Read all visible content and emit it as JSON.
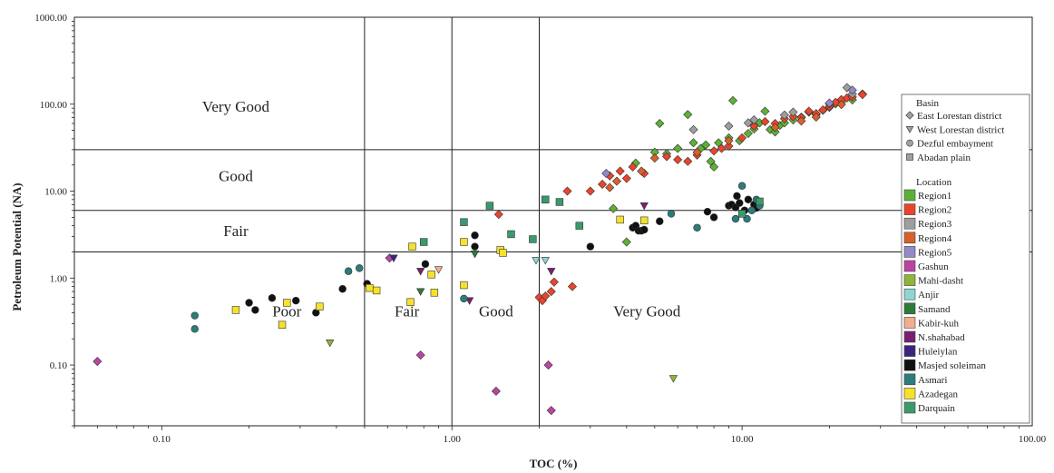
{
  "chart_data": {
    "type": "scatter",
    "xlabel": "TOC (%)",
    "ylabel": "Petroleum Potential (NA)",
    "xscale": "log",
    "yscale": "log",
    "xlim": [
      0.05,
      100
    ],
    "ylim": [
      0.02,
      1000
    ],
    "x_ticks": [
      {
        "value": 0.1,
        "label": "0.10"
      },
      {
        "value": 1,
        "label": "1.00"
      },
      {
        "value": 10,
        "label": "10.00"
      },
      {
        "value": 100,
        "label": "100.00"
      }
    ],
    "y_ticks": [
      {
        "value": 0.1,
        "label": "0.10"
      },
      {
        "value": 1,
        "label": "1.00"
      },
      {
        "value": 10,
        "label": "10.00"
      },
      {
        "value": 100,
        "label": "100.00"
      },
      {
        "value": 1000,
        "label": "1000.00"
      }
    ],
    "x_boundaries": [
      0.5,
      1,
      2
    ],
    "y_boundaries": [
      2,
      6,
      30
    ],
    "y_zone_labels": [
      {
        "text": "Very Good",
        "y": 95
      },
      {
        "text": "Good",
        "y": 15
      },
      {
        "text": "Fair",
        "y": 3.5
      }
    ],
    "x_zone_labels": [
      {
        "text": "Poor",
        "x": 0.27
      },
      {
        "text": "Fair",
        "x": 0.7
      },
      {
        "text": "Good",
        "x": 1.42
      },
      {
        "text": "Very Good",
        "x": 4.7
      }
    ],
    "x_zone_label_y": 0.42,
    "legend": {
      "position": "right",
      "basin_title": "Basin",
      "basin_items": [
        {
          "label": "East Lorestan district",
          "shape": "diamond"
        },
        {
          "label": "West Lorestan district",
          "shape": "triangle-down"
        },
        {
          "label": "Dezful embayment",
          "shape": "circle"
        },
        {
          "label": "Abadan plain",
          "shape": "square"
        }
      ],
      "location_title": "Location"
    },
    "series": [
      {
        "name": "Region1",
        "color": "#5cb136",
        "shape": "diamond",
        "points": [
          [
            3.6,
            6.3
          ],
          [
            4,
            2.6
          ],
          [
            4.3,
            21
          ],
          [
            5,
            28
          ],
          [
            5.2,
            60
          ],
          [
            5.5,
            27
          ],
          [
            6,
            31
          ],
          [
            6.5,
            76
          ],
          [
            6.8,
            36
          ],
          [
            7.2,
            31
          ],
          [
            7.5,
            34
          ],
          [
            7.8,
            22
          ],
          [
            8,
            19
          ],
          [
            8.3,
            36
          ],
          [
            9,
            41
          ],
          [
            9.3,
            110
          ],
          [
            9.8,
            38
          ],
          [
            10.5,
            46
          ],
          [
            11,
            52
          ],
          [
            11.5,
            61
          ],
          [
            12,
            83
          ],
          [
            12.5,
            51
          ],
          [
            13,
            48
          ],
          [
            13.5,
            57
          ],
          [
            14,
            61
          ],
          [
            15,
            66
          ],
          [
            16,
            71
          ],
          [
            17,
            81
          ],
          [
            18,
            76
          ],
          [
            19,
            85
          ],
          [
            20,
            92
          ],
          [
            21,
            101
          ],
          [
            22,
            106
          ],
          [
            24,
            112
          ],
          [
            26,
            131
          ]
        ]
      },
      {
        "name": "Region2",
        "color": "#e8452c",
        "shape": "diamond",
        "points": [
          [
            1.45,
            5.4
          ],
          [
            2,
            0.6
          ],
          [
            2.05,
            0.55
          ],
          [
            2.1,
            0.62
          ],
          [
            2.2,
            0.7
          ],
          [
            2.25,
            0.9
          ],
          [
            2.5,
            10
          ],
          [
            2.6,
            0.8
          ],
          [
            3,
            10
          ],
          [
            3.3,
            12
          ],
          [
            3.5,
            15
          ],
          [
            3.8,
            17
          ],
          [
            4,
            14
          ],
          [
            4.2,
            19
          ],
          [
            4.6,
            16
          ],
          [
            5.5,
            25
          ],
          [
            6,
            23
          ],
          [
            6.5,
            22
          ],
          [
            7,
            26
          ],
          [
            8,
            29
          ],
          [
            8.5,
            31
          ],
          [
            9,
            33
          ],
          [
            10,
            41
          ],
          [
            11,
            56
          ],
          [
            12,
            63
          ],
          [
            13,
            60
          ],
          [
            14,
            68
          ],
          [
            15,
            72
          ],
          [
            16,
            70
          ],
          [
            17,
            83
          ],
          [
            18,
            78
          ],
          [
            19,
            86
          ],
          [
            20,
            94
          ],
          [
            21,
            105
          ],
          [
            22,
            113
          ],
          [
            23,
            118
          ],
          [
            24,
            121
          ],
          [
            26,
            129
          ]
        ]
      },
      {
        "name": "Region3",
        "color": "#9e9e9e",
        "shape": "diamond",
        "points": [
          [
            6.8,
            51
          ],
          [
            9,
            56
          ],
          [
            10.5,
            61
          ],
          [
            11,
            66
          ],
          [
            14,
            75
          ],
          [
            15,
            81
          ],
          [
            20,
            101
          ],
          [
            23,
            155
          ],
          [
            24,
            131
          ]
        ]
      },
      {
        "name": "Region4",
        "color": "#d9602b",
        "shape": "diamond",
        "points": [
          [
            3.5,
            11
          ],
          [
            3.7,
            13
          ],
          [
            4.5,
            17
          ],
          [
            5,
            24
          ],
          [
            7,
            28
          ],
          [
            9,
            38
          ],
          [
            13,
            54
          ],
          [
            16,
            64
          ],
          [
            18,
            71
          ],
          [
            22,
            99
          ]
        ]
      },
      {
        "name": "Region5",
        "color": "#9488c9",
        "shape": "diamond",
        "points": [
          [
            3.4,
            16
          ],
          [
            20,
            103
          ],
          [
            24,
            145
          ]
        ]
      },
      {
        "name": "Gashun",
        "color": "#bb44a3",
        "shape": "diamond",
        "points": [
          [
            0.06,
            0.11
          ],
          [
            0.61,
            1.7
          ],
          [
            0.78,
            0.13
          ],
          [
            1.42,
            0.05
          ],
          [
            2.15,
            0.1
          ],
          [
            2.2,
            0.03
          ]
        ]
      },
      {
        "name": "Mahi-dasht",
        "color": "#8db53a",
        "shape": "triangle-down",
        "points": [
          [
            0.38,
            0.18
          ],
          [
            5.8,
            0.07
          ]
        ]
      },
      {
        "name": "Anjir",
        "color": "#8fd5d1",
        "shape": "triangle-down",
        "points": [
          [
            1.95,
            1.6
          ],
          [
            2.1,
            1.6
          ]
        ]
      },
      {
        "name": "Samand",
        "color": "#2f7a3a",
        "shape": "triangle-down",
        "points": [
          [
            0.78,
            0.7
          ],
          [
            1.2,
            1.9
          ]
        ]
      },
      {
        "name": "Kabir-kuh",
        "color": "#f3ad8c",
        "shape": "triangle-down",
        "points": [
          [
            0.9,
            1.25
          ]
        ]
      },
      {
        "name": "N.shahabad",
        "color": "#7b1e72",
        "shape": "triangle-down",
        "points": [
          [
            0.78,
            1.2
          ],
          [
            1.15,
            0.55
          ],
          [
            2.2,
            1.2
          ],
          [
            4.6,
            6.8
          ]
        ]
      },
      {
        "name": "Huleiylan",
        "color": "#3b2380",
        "shape": "triangle-down",
        "points": [
          [
            0.63,
            1.7
          ]
        ]
      },
      {
        "name": "Masjed soleiman",
        "color": "#111111",
        "shape": "circle",
        "points": [
          [
            0.2,
            0.52
          ],
          [
            0.21,
            0.43
          ],
          [
            0.24,
            0.59
          ],
          [
            0.29,
            0.55
          ],
          [
            0.34,
            0.4
          ],
          [
            0.42,
            0.75
          ],
          [
            0.51,
            0.86
          ],
          [
            0.81,
            1.45
          ],
          [
            1.2,
            3.1
          ],
          [
            1.2,
            2.3
          ],
          [
            3,
            2.3
          ],
          [
            4.2,
            3.8
          ],
          [
            4.3,
            4
          ],
          [
            4.4,
            3.5
          ],
          [
            4.5,
            3.5
          ],
          [
            4.6,
            3.6
          ],
          [
            5.2,
            4.5
          ],
          [
            7.6,
            5.8
          ],
          [
            8,
            5
          ],
          [
            9,
            6.8
          ],
          [
            9.2,
            7
          ],
          [
            9.5,
            6.5
          ],
          [
            9.6,
            8.8
          ],
          [
            9.8,
            7.3
          ],
          [
            10.2,
            6
          ],
          [
            10.5,
            8
          ],
          [
            11,
            7
          ],
          [
            11.2,
            6.4
          ]
        ]
      },
      {
        "name": "Asmari",
        "color": "#2b7c7a",
        "shape": "circle",
        "points": [
          [
            0.13,
            0.37
          ],
          [
            0.13,
            0.26
          ],
          [
            0.44,
            1.2
          ],
          [
            0.48,
            1.3
          ],
          [
            1.1,
            0.58
          ],
          [
            5.7,
            5.5
          ],
          [
            7,
            3.8
          ],
          [
            9.5,
            4.8
          ],
          [
            10,
            11.5
          ],
          [
            10.4,
            4.8
          ],
          [
            10.8,
            6
          ],
          [
            11.2,
            8
          ],
          [
            11.5,
            6.8
          ]
        ]
      },
      {
        "name": "Azadegan",
        "color": "#f6e12b",
        "shape": "square",
        "points": [
          [
            0.18,
            0.43
          ],
          [
            0.26,
            0.29
          ],
          [
            0.27,
            0.52
          ],
          [
            0.35,
            0.47
          ],
          [
            0.52,
            0.77
          ],
          [
            0.55,
            0.72
          ],
          [
            0.72,
            0.53
          ],
          [
            0.73,
            2.3
          ],
          [
            0.85,
            1.1
          ],
          [
            0.87,
            0.68
          ],
          [
            1.1,
            2.6
          ],
          [
            1.1,
            0.83
          ],
          [
            1.47,
            2.1
          ],
          [
            1.5,
            1.95
          ],
          [
            3.8,
            4.7
          ],
          [
            4.6,
            4.6
          ]
        ]
      },
      {
        "name": "Darquain",
        "color": "#3a9a6c",
        "shape": "square",
        "points": [
          [
            0.8,
            2.6
          ],
          [
            1.1,
            4.4
          ],
          [
            1.35,
            6.8
          ],
          [
            1.6,
            3.2
          ],
          [
            1.9,
            2.8
          ],
          [
            2.1,
            8
          ],
          [
            2.35,
            7.5
          ],
          [
            2.75,
            4
          ],
          [
            10,
            5.5
          ],
          [
            11.5,
            7.6
          ]
        ]
      }
    ]
  }
}
